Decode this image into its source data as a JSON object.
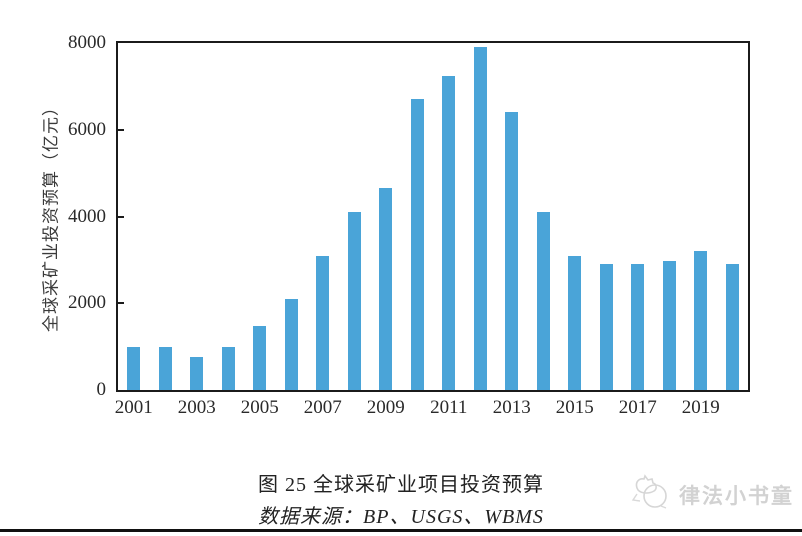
{
  "chart_data": {
    "type": "bar",
    "title": "图 25 全球采矿业项目投资预算",
    "source": "数据来源：BP、USGS、WBMS",
    "xlabel": "",
    "ylabel": "全球采矿业投资预算（亿元）",
    "categories": [
      "2001",
      "2002",
      "2003",
      "2004",
      "2005",
      "2006",
      "2007",
      "2008",
      "2009",
      "2010",
      "2011",
      "2012",
      "2013",
      "2014",
      "2015",
      "2016",
      "2017",
      "2018",
      "2019",
      "2020"
    ],
    "values": [
      1000,
      1000,
      770,
      1000,
      1470,
      2100,
      3100,
      4100,
      4650,
      6700,
      7250,
      7900,
      6400,
      4100,
      3100,
      2900,
      2900,
      2970,
      3200,
      2900
    ],
    "ylim": [
      0,
      8000
    ],
    "yticks": [
      0,
      2000,
      4000,
      6000,
      8000
    ],
    "xtick_labels": [
      "2001",
      "2003",
      "2005",
      "2007",
      "2009",
      "2011",
      "2013",
      "2015",
      "2017",
      "2019"
    ],
    "bar_color": "#4aa4d8",
    "axis_color": "#1b1b1b",
    "grid": false,
    "legend": "none"
  },
  "watermark": {
    "text": "律法小书童",
    "color": "#d2d2d2"
  }
}
